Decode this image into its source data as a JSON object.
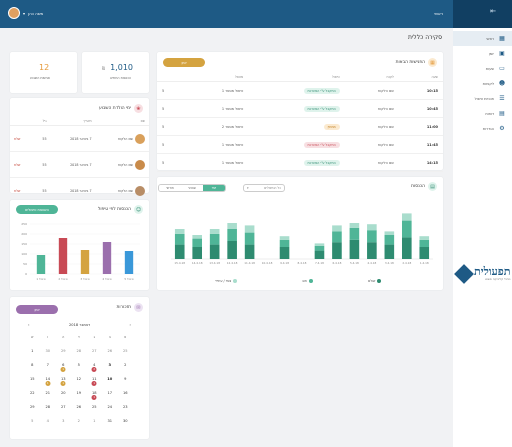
{
  "topbar": {
    "user_name": "משה כהן",
    "brand": "ראשי",
    "bg": "#1e5a85"
  },
  "sidebar": {
    "items": [
      {
        "label": "ראשי",
        "icon": "grid-icon",
        "active": true
      },
      {
        "label": "יומן",
        "icon": "calendar-icon"
      },
      {
        "label": "שעות",
        "icon": "money-icon"
      },
      {
        "label": "לקוחות",
        "icon": "users-icon"
      },
      {
        "label": "תכניות טיפול",
        "icon": "list-icon"
      },
      {
        "label": "דוחות",
        "icon": "report-icon"
      },
      {
        "label": "הגדרות",
        "icon": "gear-icon"
      }
    ]
  },
  "logo": {
    "main": "תפעולית",
    "sub": "ניהול קליניקה פשוט"
  },
  "page": {
    "title": "סקירה כללית"
  },
  "stats": [
    {
      "value": "1,010",
      "unit": "₪",
      "label": "הכנסות החודש"
    },
    {
      "value": "12",
      "label": "פגישות השבוע"
    }
  ],
  "meetings": {
    "title": "הפגישות הבאות",
    "button": "יומן",
    "columns": [
      "שעה",
      "לקוח",
      "טיפול",
      "מטפל"
    ],
    "rows": [
      {
        "time": "10:15",
        "client": "שם הלקוח",
        "status": "התקבל ע\"י המערכת",
        "type": "green",
        "therapist": "טיפול מספר 1",
        "n": "5"
      },
      {
        "time": "10:45",
        "client": "שם הלקוח",
        "status": "התקבל ע\"י המערכת",
        "type": "green",
        "therapist": "טיפול מספר 1",
        "n": "5"
      },
      {
        "time": "11:00",
        "client": "שם הלקוח",
        "status": "ממתין",
        "type": "orange",
        "therapist": "טיפול מספר 2",
        "n": "5"
      },
      {
        "time": "11:45",
        "client": "שם הלקוח",
        "status": "התקבל ע\"י המערכת",
        "type": "red",
        "therapist": "טיפול מספר 1",
        "n": "5"
      },
      {
        "time": "14:15",
        "client": "שם הלקוח",
        "status": "התקבל ע\"י המערכת",
        "type": "green",
        "therapist": "טיפול מספר 1",
        "n": "5"
      }
    ]
  },
  "birthdays": {
    "title": "ימי הולדת השבוע",
    "columns": [
      "שם",
      "תאריך",
      "גיל",
      ""
    ],
    "rows": [
      {
        "name": "שם הלקוח",
        "date": "7 בינואר 2018",
        "age": "55",
        "action": "שלח"
      },
      {
        "name": "שם הלקוח",
        "date": "7 בינואר 2018",
        "age": "55",
        "action": "שלח"
      },
      {
        "name": "שם הלקוח",
        "date": "7 בינואר 2018",
        "age": "55",
        "action": "שלח"
      }
    ]
  },
  "income": {
    "title": "הכנסות",
    "select": "כל הטיפולים",
    "tabs": [
      "יומי",
      "שבועי",
      "חודשי"
    ],
    "legend": [
      {
        "label": "שולם",
        "color": "#2e8b70"
      },
      {
        "label": "חוב",
        "color": "#4fb597"
      },
      {
        "label": "צפוי / עתידי",
        "color": "#a9ddcd"
      }
    ]
  },
  "mini_chart": {
    "title": "הכנסות לפי טיפול",
    "button": "השוואת טיפולים"
  },
  "calendar": {
    "title": "תזכורות",
    "button": "יומן",
    "month": "דצמבר 2018",
    "prev": "‹",
    "next": "›",
    "weekdays": [
      "א",
      "ב",
      "ג",
      "ד",
      "ה",
      "ו",
      "ש"
    ]
  },
  "chart_data": [
    {
      "type": "bar",
      "title": "הכנסות",
      "categories": [
        "1.4.18",
        "2.4.18",
        "3.4.18",
        "4.4.18",
        "5.4.18",
        "6.4.18",
        "7.4.18",
        "8.4.18",
        "9.4.18",
        "10.4.18",
        "11.4.18",
        "12.4.18",
        "13.4.18",
        "14.4.18",
        "15.4.18"
      ],
      "series": [
        {
          "name": "שולם",
          "values": [
            10,
            18,
            12,
            14,
            16,
            14,
            7,
            0,
            10,
            0,
            12,
            15,
            12,
            10,
            12
          ]
        },
        {
          "name": "חוב",
          "values": [
            6,
            14,
            8,
            10,
            10,
            9,
            4,
            0,
            6,
            0,
            10,
            10,
            9,
            7,
            9
          ]
        },
        {
          "name": "צפוי / עתידי",
          "values": [
            3,
            6,
            3,
            5,
            4,
            5,
            2,
            0,
            3,
            0,
            6,
            5,
            4,
            3,
            4
          ]
        }
      ],
      "stacked": true,
      "ylim": [
        0,
        45
      ]
    },
    {
      "type": "bar",
      "title": "הכנסות לפי טיפול",
      "categories": [
        "טיפול 1",
        "טיפול 2",
        "טיפול 3",
        "טיפול 4",
        "טיפול 5"
      ],
      "values": [
        95,
        180,
        120,
        160,
        115
      ],
      "colors": [
        "#4fb597",
        "#c84a55",
        "#d4a340",
        "#9b6fad",
        "#3a98d9"
      ],
      "ylim": [
        0,
        250
      ],
      "yticks": [
        0,
        50,
        100,
        150,
        200,
        250
      ]
    }
  ]
}
